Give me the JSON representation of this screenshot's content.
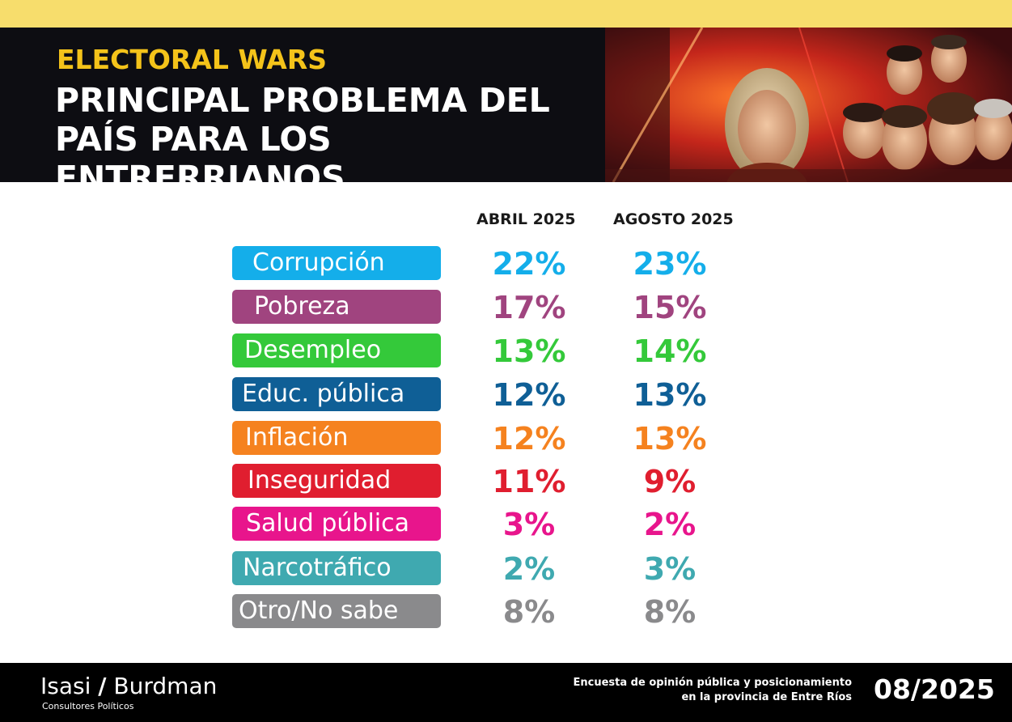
{
  "header": {
    "brand": "ELECTORAL WARS",
    "title_line1": "PRINCIPAL PROBLEMA DEL",
    "title_line2": "PAÍS PARA LOS ENTRERRIANOS"
  },
  "chart_data": {
    "type": "table",
    "columns": [
      "ABRIL 2025",
      "AGOSTO 2025"
    ],
    "rows": [
      {
        "label": "Corrupción",
        "abril": "22%",
        "agosto": "23%",
        "color": "#14aeea"
      },
      {
        "label": "Pobreza",
        "abril": "17%",
        "agosto": "15%",
        "color": "#a0447f"
      },
      {
        "label": "Desempleo",
        "abril": "13%",
        "agosto": "14%",
        "color": "#34c93a"
      },
      {
        "label": "Educ. pública",
        "abril": "12%",
        "agosto": "13%",
        "color": "#0f5f96"
      },
      {
        "label": "Inflación",
        "abril": "12%",
        "agosto": "13%",
        "color": "#f5821f"
      },
      {
        "label": "Inseguridad",
        "abril": "11%",
        "agosto": "9%",
        "color": "#e01e2f"
      },
      {
        "label": "Salud pública",
        "abril": "3%",
        "agosto": "2%",
        "color": "#e8158c"
      },
      {
        "label": "Narcotráfico",
        "abril": "2%",
        "agosto": "3%",
        "color": "#3fa9b0"
      },
      {
        "label": "Otro/No sabe",
        "abril": "8%",
        "agosto": "8%",
        "color": "#8a8a8c"
      }
    ]
  },
  "footer": {
    "logo_left": "Isasi",
    "logo_slash": "/",
    "logo_right": "Burdman",
    "logo_sub": "Consultores Políticos",
    "survey_line1": "Encuesta de opinión pública y posicionamiento",
    "survey_line2": "en la provincia de Entre Ríos",
    "date": "08/2025"
  },
  "colors": {
    "top_strip": "#f7dd6c",
    "header_bg": "#0d0d12",
    "brand": "#f4c31a",
    "footer_bg": "#000000"
  }
}
